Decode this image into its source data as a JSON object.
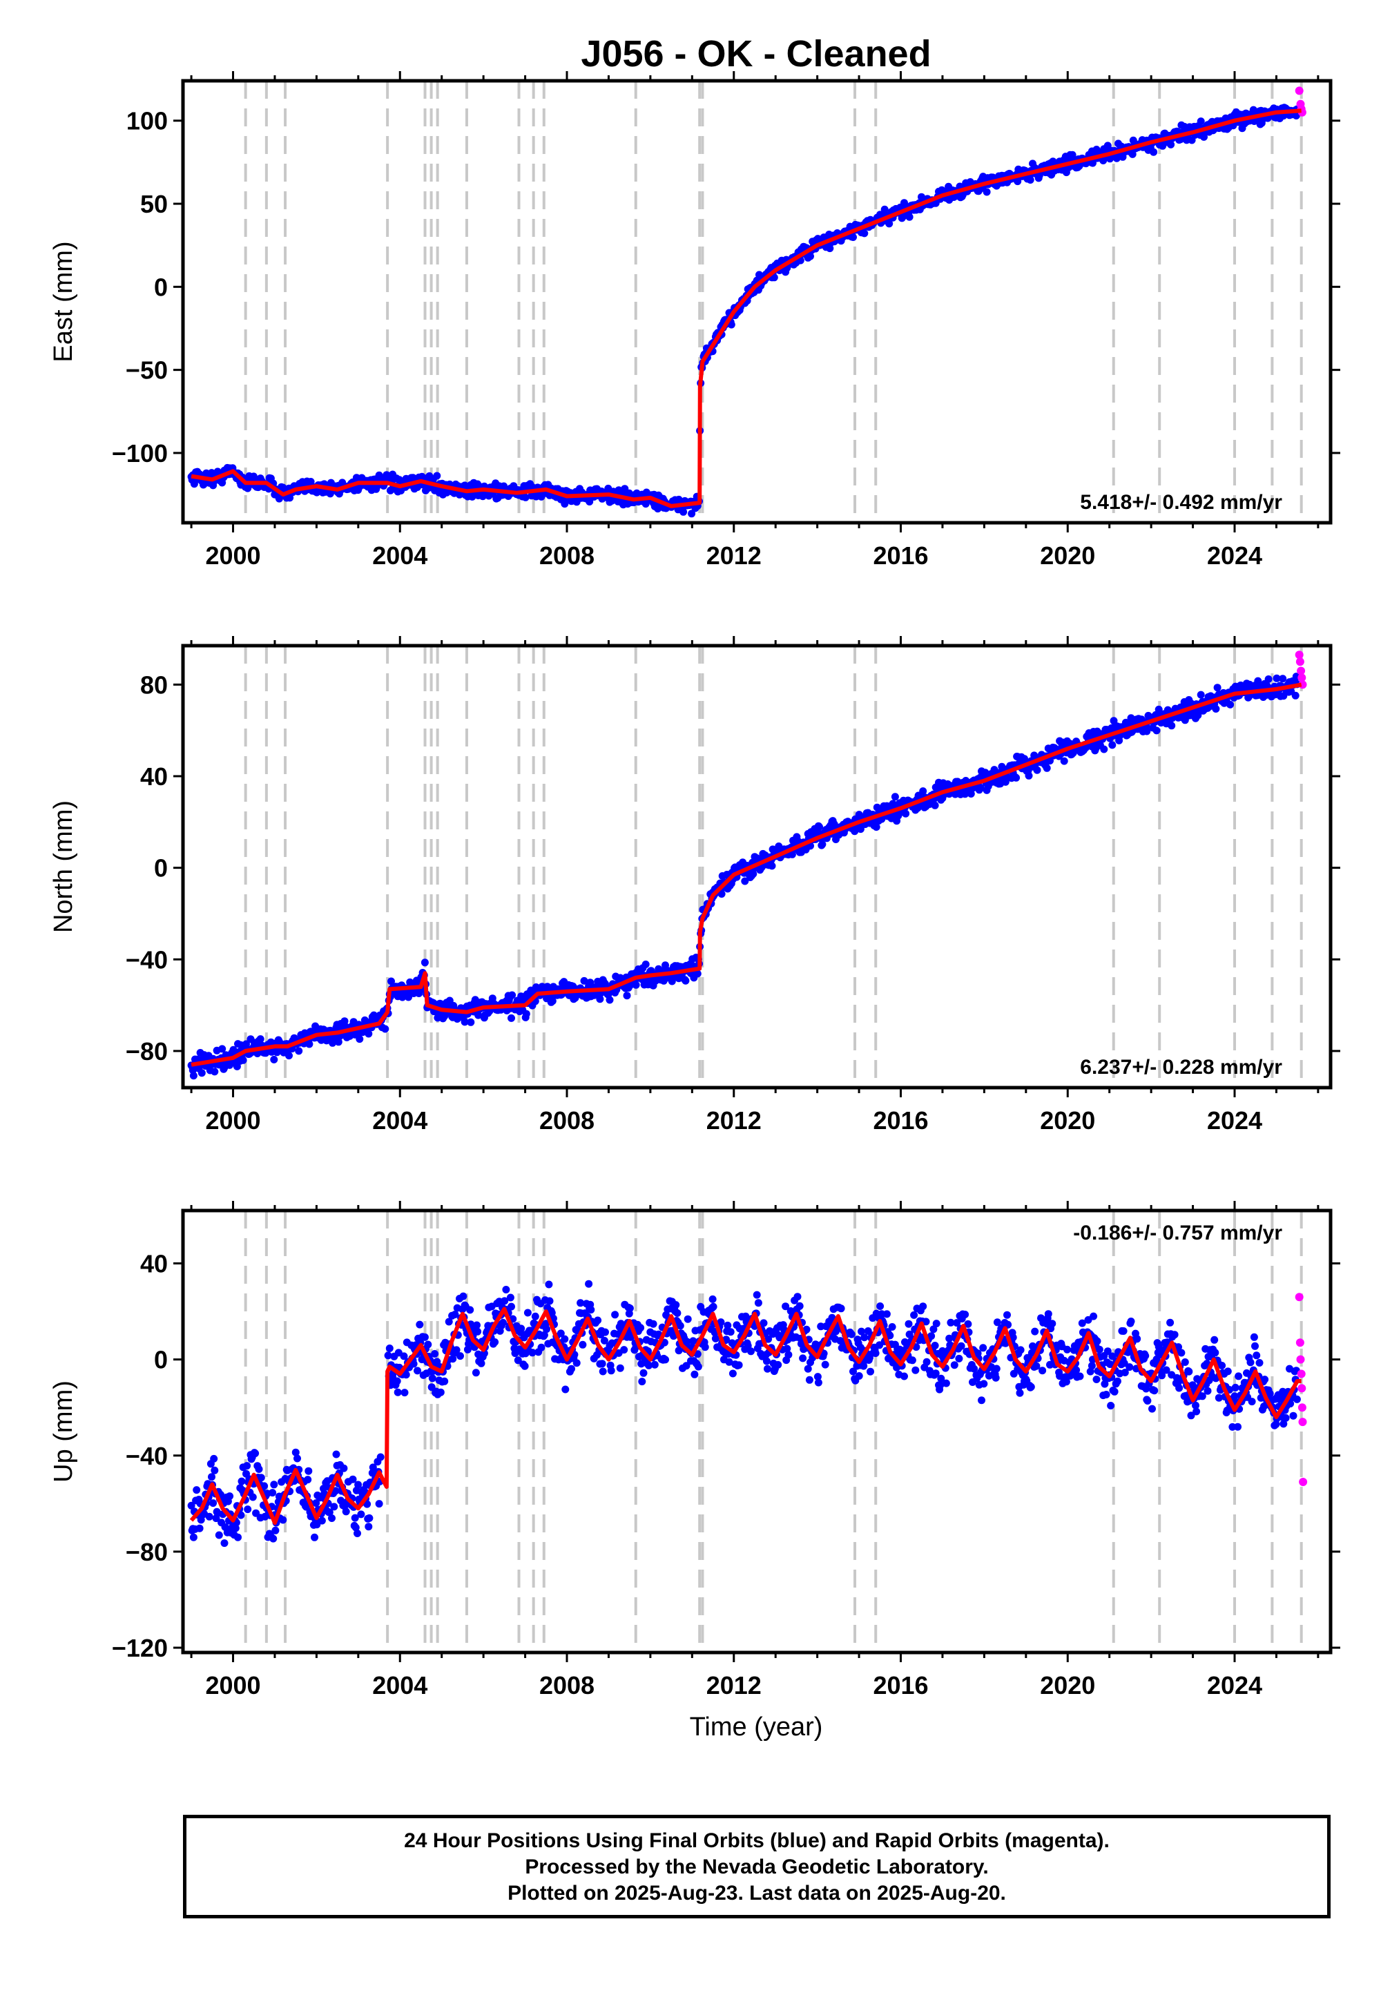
{
  "title": "J056  - OK - Cleaned",
  "xlabel": "Time (year)",
  "footer": {
    "line1": "24 Hour Positions Using Final Orbits (blue) and Rapid Orbits (magenta).",
    "line2": "Processed by the Nevada Geodetic Laboratory.",
    "line3": "Plotted on 2025-Aug-23. Last data on 2025-Aug-20."
  },
  "colors": {
    "final": "#0000ff",
    "rapid": "#ff00ff",
    "model": "#ff0000",
    "equipment": "#c8c8c8"
  },
  "chart_data": [
    {
      "type": "scatter",
      "panel": "east",
      "ylabel": "East (mm)",
      "xlim": [
        1998.8,
        2026.3
      ],
      "ylim": [
        -142,
        124
      ],
      "xticks": [
        2000,
        2004,
        2008,
        2012,
        2016,
        2020,
        2024
      ],
      "yticks": [
        -100,
        -50,
        0,
        50,
        100
      ],
      "rate": "5.418+/- 0.492 mm/yr",
      "rate_position": "bottom-right",
      "equipment_changes": [
        2000.3,
        2000.8,
        2001.25,
        2003.7,
        2004.6,
        2004.75,
        2004.9,
        2005.6,
        2006.85,
        2007.2,
        2007.45,
        2009.65,
        2011.18,
        2011.25,
        2014.9,
        2015.4,
        2021.1,
        2022.2,
        2024.0,
        2024.9,
        2025.6
      ],
      "model_x": [
        1999.0,
        1999.5,
        2000.0,
        2000.3,
        2000.8,
        2001.2,
        2001.5,
        2002.0,
        2002.5,
        2003.0,
        2003.7,
        2004.0,
        2004.5,
        2005.0,
        2005.6,
        2006.0,
        2006.8,
        2007.5,
        2008.0,
        2009.0,
        2009.6,
        2010.0,
        2010.5,
        2011.18,
        2011.19,
        2011.25,
        2011.5,
        2012.0,
        2012.5,
        2013.0,
        2014.0,
        2015.0,
        2016.0,
        2017.0,
        2018.0,
        2019.0,
        2020.0,
        2021.0,
        2022.0,
        2023.0,
        2024.0,
        2025.0,
        2025.6
      ],
      "model_y": [
        -114,
        -116,
        -111,
        -118,
        -118,
        -125,
        -122,
        -120,
        -122,
        -118,
        -118,
        -120,
        -117,
        -120,
        -123,
        -122,
        -124,
        -122,
        -126,
        -125,
        -128,
        -127,
        -132,
        -130,
        -60,
        -45,
        -35,
        -15,
        0,
        10,
        25,
        35,
        45,
        55,
        62,
        68,
        74,
        80,
        87,
        93,
        100,
        105,
        106
      ],
      "rapid_x": [
        2025.55,
        2025.58,
        2025.6,
        2025.62
      ],
      "rapid_y": [
        118,
        110,
        107,
        105
      ]
    },
    {
      "type": "scatter",
      "panel": "north",
      "ylabel": "North (mm)",
      "xlim": [
        1998.8,
        2026.3
      ],
      "ylim": [
        -96,
        97
      ],
      "xticks": [
        2000,
        2004,
        2008,
        2012,
        2016,
        2020,
        2024
      ],
      "yticks": [
        -80,
        -40,
        0,
        40,
        80
      ],
      "rate": "6.237+/- 0.228 mm/yr",
      "rate_position": "bottom-right",
      "model_x": [
        1999.0,
        2000.0,
        2000.3,
        2001.0,
        2001.3,
        2002.0,
        2002.5,
        2003.5,
        2003.7,
        2003.75,
        2004.5,
        2004.6,
        2004.65,
        2005.0,
        2005.6,
        2006.0,
        2007.0,
        2007.3,
        2008.0,
        2009.0,
        2009.65,
        2010.0,
        2010.5,
        2011.18,
        2011.19,
        2011.25,
        2011.5,
        2012.0,
        2013.0,
        2014.0,
        2015.0,
        2016.0,
        2017.0,
        2018.0,
        2019.0,
        2020.0,
        2021.0,
        2022.0,
        2023.0,
        2024.0,
        2025.0,
        2025.6
      ],
      "model_y": [
        -86,
        -83,
        -80,
        -78,
        -78,
        -73,
        -72,
        -68,
        -63,
        -53,
        -52,
        -46,
        -60,
        -62,
        -63,
        -61,
        -60,
        -55,
        -54,
        -53,
        -48,
        -47,
        -46,
        -44,
        -28,
        -22,
        -12,
        -3,
        5,
        13,
        20,
        26,
        33,
        38,
        45,
        52,
        58,
        64,
        70,
        76,
        78,
        80
      ],
      "rapid_x": [
        2025.55,
        2025.57,
        2025.59,
        2025.61,
        2025.63
      ],
      "rapid_y": [
        93,
        90,
        86,
        83,
        80
      ]
    },
    {
      "type": "scatter",
      "panel": "up",
      "ylabel": "Up (mm)",
      "xlim": [
        1998.8,
        2026.3
      ],
      "ylim": [
        -122,
        62
      ],
      "xticks": [
        2000,
        2004,
        2008,
        2012,
        2016,
        2020,
        2024
      ],
      "yticks": [
        -120,
        -80,
        -40,
        0,
        40
      ],
      "rate": "-0.186+/- 0.757 mm/yr",
      "rate_position": "top-right",
      "model_x": [
        1999.0,
        1999.25,
        1999.5,
        1999.75,
        2000.0,
        2000.25,
        2000.5,
        2000.75,
        2001.0,
        2001.25,
        2001.5,
        2001.75,
        2002.0,
        2002.25,
        2002.5,
        2002.75,
        2003.0,
        2003.25,
        2003.5,
        2003.68,
        2003.7,
        2003.75,
        2004.0,
        2004.25,
        2004.5,
        2004.75,
        2005.0,
        2005.25,
        2005.5,
        2005.75,
        2006.0,
        2006.25,
        2006.5,
        2006.75,
        2007.0,
        2007.25,
        2007.5,
        2007.75,
        2008.0,
        2008.25,
        2008.5,
        2008.75,
        2009.0,
        2009.25,
        2009.5,
        2009.75,
        2010.0,
        2010.25,
        2010.5,
        2010.75,
        2011.0,
        2011.25,
        2011.5,
        2011.75,
        2012.0,
        2012.25,
        2012.5,
        2012.75,
        2013.0,
        2013.25,
        2013.5,
        2013.75,
        2014.0,
        2014.25,
        2014.5,
        2014.75,
        2015.0,
        2015.25,
        2015.5,
        2015.75,
        2016.0,
        2016.25,
        2016.5,
        2016.75,
        2017.0,
        2017.25,
        2017.5,
        2017.75,
        2018.0,
        2018.25,
        2018.5,
        2018.75,
        2019.0,
        2019.25,
        2019.5,
        2019.75,
        2020.0,
        2020.25,
        2020.5,
        2020.75,
        2021.0,
        2021.25,
        2021.5,
        2021.75,
        2022.0,
        2022.25,
        2022.5,
        2022.75,
        2023.0,
        2023.25,
        2023.5,
        2023.75,
        2024.0,
        2024.25,
        2024.5,
        2024.75,
        2025.0,
        2025.25,
        2025.5,
        2025.6
      ],
      "model_y": [
        -67,
        -62,
        -52,
        -62,
        -67,
        -58,
        -48,
        -58,
        -68,
        -56,
        -46,
        -56,
        -66,
        -58,
        -48,
        -58,
        -62,
        -56,
        -47,
        -53,
        -5,
        -3,
        -6,
        0,
        6,
        -3,
        -5,
        8,
        19,
        8,
        4,
        14,
        21,
        10,
        5,
        12,
        20,
        9,
        0,
        8,
        17,
        6,
        0,
        7,
        16,
        5,
        0,
        8,
        18,
        6,
        2,
        10,
        19,
        6,
        3,
        10,
        19,
        6,
        2,
        10,
        19,
        6,
        1,
        10,
        18,
        5,
        -1,
        6,
        16,
        3,
        -2,
        5,
        15,
        2,
        -3,
        4,
        14,
        1,
        -4,
        3,
        13,
        0,
        -5,
        2,
        12,
        -2,
        -5,
        1,
        11,
        -3,
        -7,
        1,
        9,
        -4,
        -9,
        -1,
        7,
        -6,
        -17,
        -9,
        0,
        -12,
        -21,
        -14,
        -5,
        -16,
        -24,
        -17,
        -9,
        -9
      ],
      "rapid_x": [
        2025.55,
        2025.57,
        2025.58,
        2025.6,
        2025.61,
        2025.62,
        2025.63,
        2025.64
      ],
      "rapid_y": [
        26,
        7,
        0,
        -6,
        -12,
        -20,
        -26,
        -51
      ]
    }
  ]
}
